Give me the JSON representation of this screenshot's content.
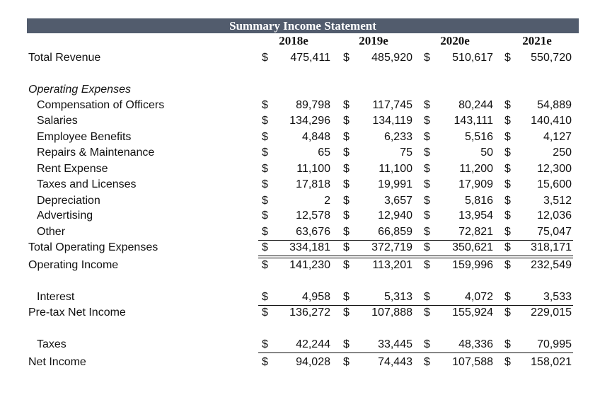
{
  "header": {
    "title": "Summary Income Statement",
    "years": [
      "2018e",
      "2019e",
      "2020e",
      "2021e"
    ]
  },
  "currency": "$",
  "rows": [
    {
      "label": "Total Revenue",
      "values": [
        "475,411",
        "485,920",
        "510,617",
        "550,720"
      ]
    },
    {
      "label": "Operating Expenses"
    },
    {
      "label": "Compensation of Officers",
      "values": [
        "89,798",
        "117,745",
        "80,244",
        "54,889"
      ]
    },
    {
      "label": "Salaries",
      "values": [
        "134,296",
        "134,119",
        "143,111",
        "140,410"
      ]
    },
    {
      "label": "Employee Benefits",
      "values": [
        "4,848",
        "6,233",
        "5,516",
        "4,127"
      ]
    },
    {
      "label": "Repairs & Maintenance",
      "values": [
        "65",
        "75",
        "50",
        "250"
      ]
    },
    {
      "label": "Rent Expense",
      "values": [
        "11,100",
        "11,100",
        "11,200",
        "12,300"
      ]
    },
    {
      "label": "Taxes and Licenses",
      "values": [
        "17,818",
        "19,991",
        "17,909",
        "15,600"
      ]
    },
    {
      "label": "Depreciation",
      "values": [
        "2",
        "3,657",
        "5,816",
        "3,512"
      ]
    },
    {
      "label": "Advertising",
      "values": [
        "12,578",
        "12,940",
        "13,954",
        "12,036"
      ]
    },
    {
      "label": "Other",
      "values": [
        "63,676",
        "66,859",
        "72,821",
        "75,047"
      ]
    },
    {
      "label": "Total Operating Expenses",
      "values": [
        "334,181",
        "372,719",
        "350,621",
        "318,171"
      ]
    },
    {
      "label": "Operating Income",
      "values": [
        "141,230",
        "113,201",
        "159,996",
        "232,549"
      ]
    },
    {
      "label": "Interest",
      "values": [
        "4,958",
        "5,313",
        "4,072",
        "3,533"
      ]
    },
    {
      "label": "Pre-tax Net Income",
      "values": [
        "136,272",
        "107,888",
        "155,924",
        "229,015"
      ]
    },
    {
      "label": "Taxes",
      "values": [
        "42,244",
        "33,445",
        "48,336",
        "70,995"
      ]
    },
    {
      "label": "Net Income",
      "values": [
        "94,028",
        "74,443",
        "107,588",
        "158,021"
      ]
    }
  ]
}
